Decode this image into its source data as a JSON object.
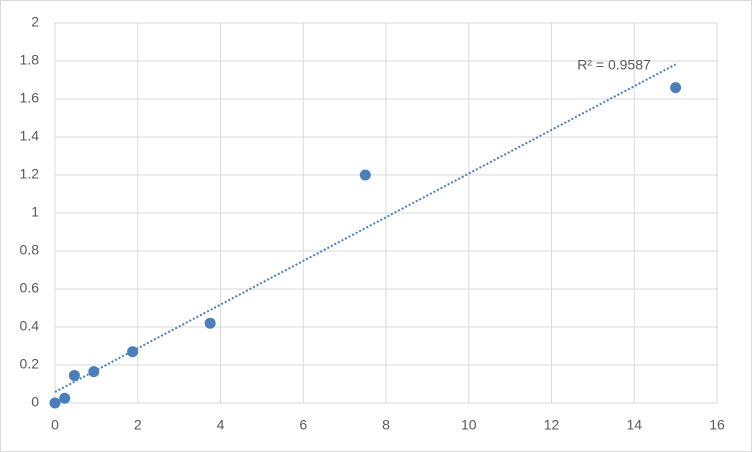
{
  "chart_data": {
    "type": "scatter",
    "series": [
      {
        "color": "#4a7ebb",
        "x": [
          0,
          0.234,
          0.469,
          0.938,
          1.875,
          3.75,
          7.5,
          15
        ],
        "values": [
          0,
          0.025,
          0.145,
          0.165,
          0.27,
          0.42,
          1.2,
          1.66
        ]
      }
    ],
    "trendline": "linear",
    "annotation": "R² = 0.9587",
    "xlim": [
      0,
      16
    ],
    "xticks": [
      0,
      2,
      4,
      6,
      8,
      10,
      12,
      14,
      16
    ],
    "ylim": [
      0,
      2
    ],
    "yticks": [
      0,
      0.2,
      0.4,
      0.6,
      0.8,
      1,
      1.2,
      1.4,
      1.6,
      1.8,
      2
    ],
    "grid": true
  }
}
